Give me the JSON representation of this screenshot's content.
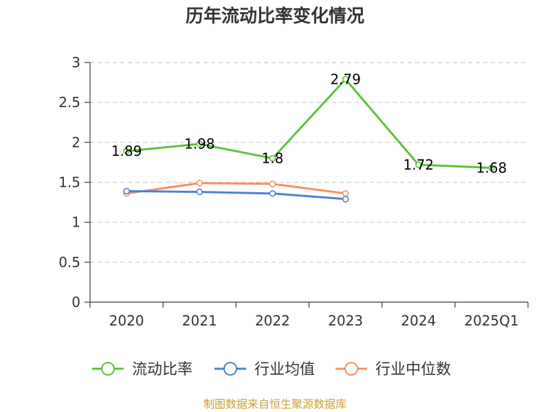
{
  "chart_data": {
    "type": "line",
    "title": "历年流动比率变化情况",
    "categories": [
      "2020",
      "2021",
      "2022",
      "2023",
      "2024",
      "2025Q1"
    ],
    "ylim": [
      0,
      3
    ],
    "yticks": [
      "0",
      "0.5",
      "1",
      "1.5",
      "2",
      "2.5",
      "3"
    ],
    "grid": true,
    "legend_position": "bottom",
    "series": [
      {
        "name": "流动比率",
        "color": "#5cc13a",
        "values": [
          1.89,
          1.98,
          1.8,
          2.79,
          1.72,
          1.68
        ],
        "labels": [
          "1.89",
          "1.98",
          "1.8",
          "2.79",
          "1.72",
          "1.68"
        ]
      },
      {
        "name": "行业均值",
        "color": "#4e7fd6",
        "values": [
          1.39,
          1.38,
          1.36,
          1.29,
          null,
          null
        ]
      },
      {
        "name": "行业中位数",
        "color": "#f5915e",
        "values": [
          1.36,
          1.49,
          1.48,
          1.36,
          null,
          null
        ]
      }
    ],
    "source": "制图数据来自恒生聚源数据库"
  }
}
